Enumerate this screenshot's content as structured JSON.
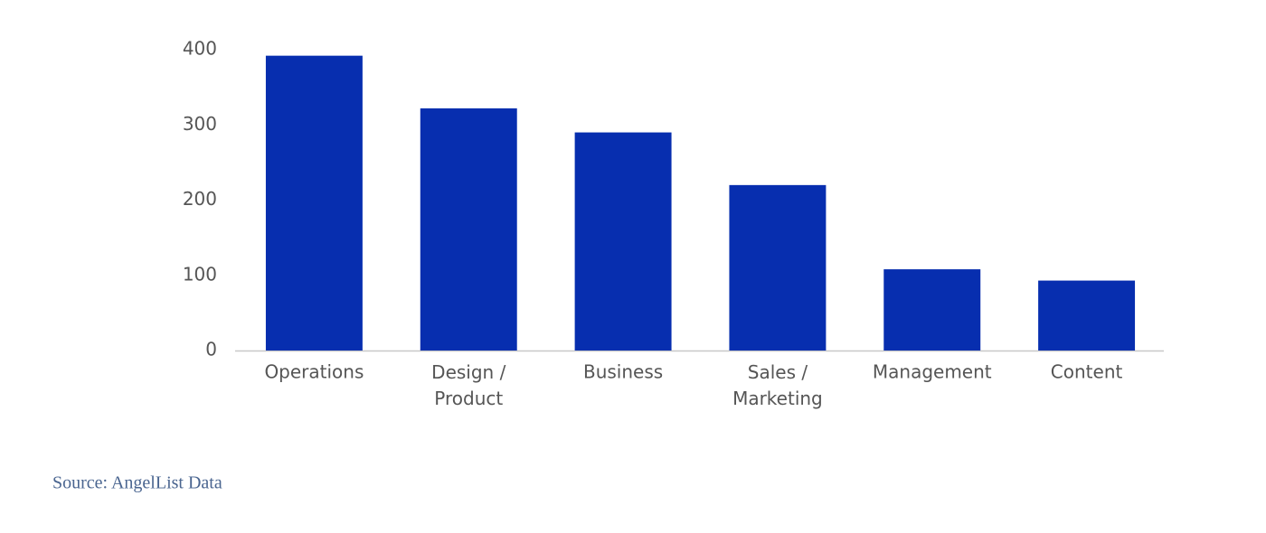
{
  "chart_data": {
    "type": "bar",
    "categories": [
      "Operations",
      "Design / Product",
      "Business",
      "Sales / Marketing",
      "Management",
      "Content"
    ],
    "values": [
      392,
      322,
      290,
      220,
      108,
      93
    ],
    "color": "#072eaf",
    "ylim": [
      0,
      400
    ],
    "yticks": [
      0,
      100,
      200,
      300,
      400
    ],
    "grid": false,
    "source": "Source: AngelList Data"
  }
}
